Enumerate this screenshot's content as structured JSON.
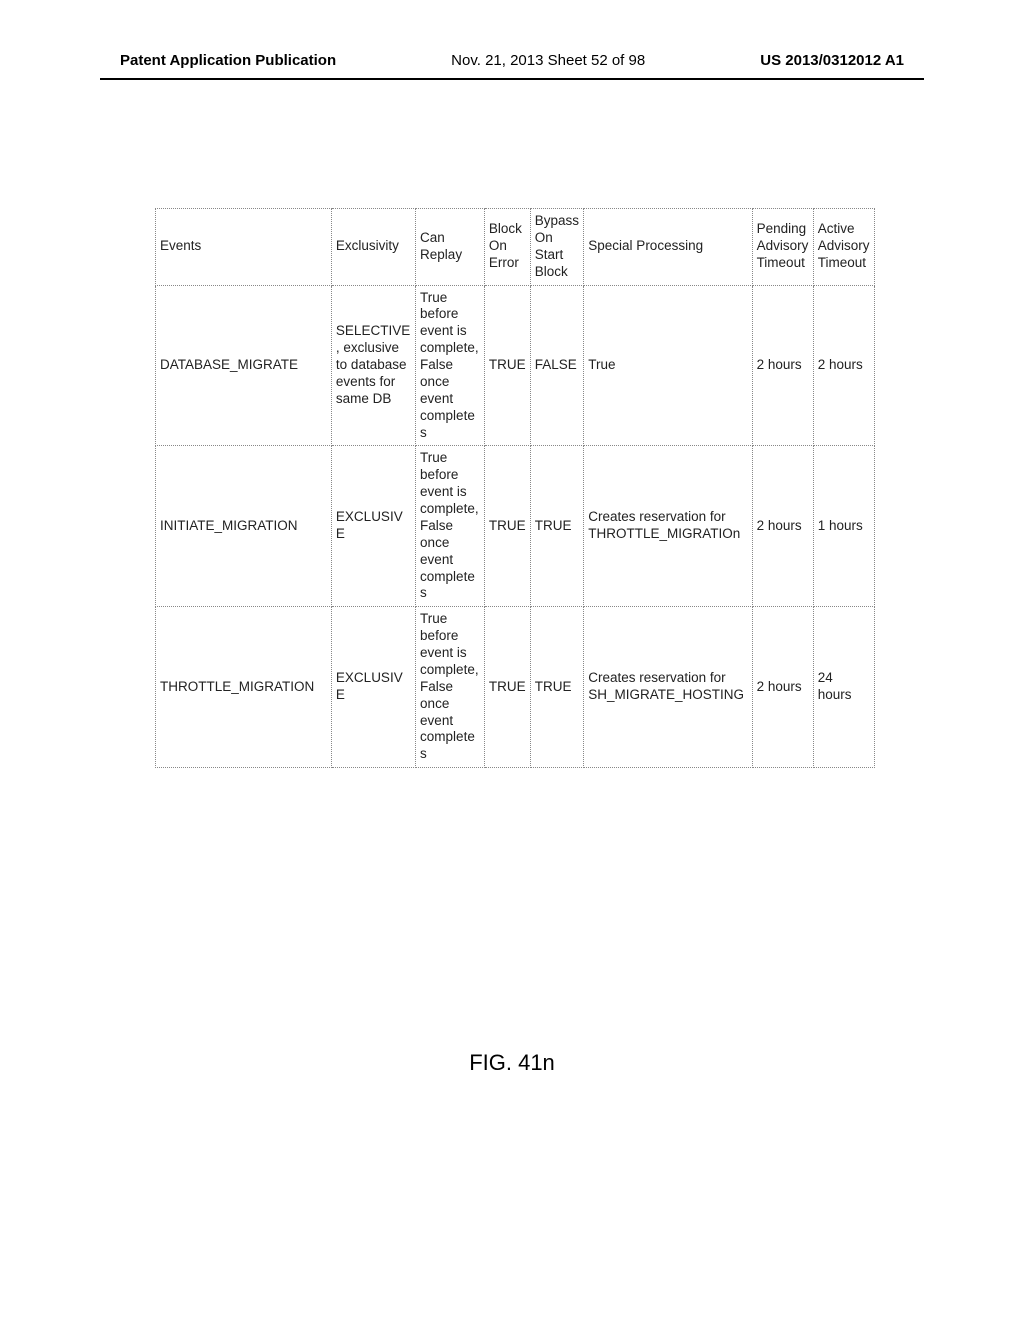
{
  "header": {
    "left": "Patent Application Publication",
    "center": "Nov. 21, 2013  Sheet 52 of 98",
    "right": "US 2013/0312012 A1"
  },
  "figure_label": "FIG. 41n",
  "table": {
    "col_widths_pct": [
      23,
      11,
      9,
      6,
      7,
      22,
      8,
      8
    ],
    "columns": [
      "Events",
      "Exclusivity",
      "Can Replay",
      "Block On Error",
      "Bypass On Start Block",
      "Special Processing",
      "Pending Advisory Timeout",
      "Active Advisory Timeout"
    ],
    "rows": [
      {
        "events": "DATABASE_MIGRATE",
        "exclusivity": "SELECTIVE, exclusive to database events for same DB",
        "can_replay": "True before event is complete, False once event completes",
        "block_on_error": "TRUE",
        "bypass_on_start_block": "FALSE",
        "special_processing": "True",
        "pending_timeout": "2 hours",
        "active_timeout": "2 hours"
      },
      {
        "events": "INITIATE_MIGRATION",
        "exclusivity": "EXCLUSIVE",
        "can_replay": "True before event is complete, False once event completes",
        "block_on_error": "TRUE",
        "bypass_on_start_block": "TRUE",
        "special_processing": "Creates reservation for THROTTLE_MIGRATIOn",
        "pending_timeout": "2 hours",
        "active_timeout": "1 hours"
      },
      {
        "events": "THROTTLE_MIGRATION",
        "exclusivity": "EXCLUSIVE",
        "can_replay": "True before event is complete, False once event completes",
        "block_on_error": "TRUE",
        "bypass_on_start_block": "TRUE",
        "special_processing": "Creates reservation for SH_MIGRATE_HOSTING",
        "pending_timeout": "2 hours",
        "active_timeout": "24 hours"
      }
    ]
  }
}
